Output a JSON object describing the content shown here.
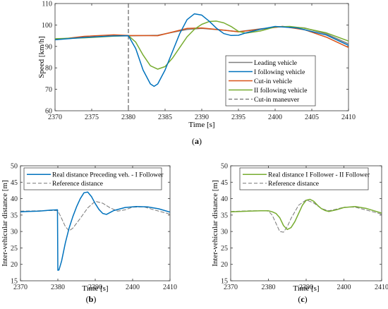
{
  "captions": [
    "(a)",
    "(b)",
    "(c)"
  ],
  "chart_data": [
    {
      "type": "line",
      "xlabel": "Time [s]",
      "ylabel": "Speed [km/h]",
      "xlim": [
        2370,
        2410
      ],
      "ylim": [
        60,
        110
      ],
      "xticks": [
        2370,
        2375,
        2380,
        2385,
        2390,
        2395,
        2400,
        2405,
        2410
      ],
      "yticks": [
        60,
        70,
        80,
        90,
        100,
        110
      ],
      "grid": false,
      "legend_position": "bottom-right",
      "vline": {
        "name": "Cut-in maneuver",
        "x": 2380,
        "color": "#555555",
        "dashed": true
      },
      "series": [
        {
          "name": "Leading vehicle",
          "color": "#7f7f7f",
          "dashed": false,
          "x": [
            2370,
            2374,
            2378,
            2380,
            2384,
            2388,
            2390,
            2393,
            2395,
            2398,
            2401,
            2404,
            2407,
            2410
          ],
          "y": [
            93.3,
            94.2,
            94.9,
            94.9,
            95.2,
            97.9,
            98.4,
            97.6,
            96.9,
            98.2,
            99.3,
            98.6,
            95.8,
            91.2
          ]
        },
        {
          "name": "Cut-in vehicle",
          "color": "#d95319",
          "dashed": false,
          "x": [
            2370,
            2374,
            2378,
            2380,
            2384,
            2388,
            2390,
            2393,
            2395,
            2398,
            2401,
            2404,
            2407,
            2410
          ],
          "y": [
            93.1,
            94.7,
            95.4,
            95.1,
            95.0,
            98.4,
            98.6,
            97.6,
            96.8,
            98.0,
            99.3,
            97.8,
            94.3,
            89.5
          ]
        },
        {
          "name": "II following vehicle",
          "color": "#77ac30",
          "dashed": false,
          "x": [
            2370,
            2374,
            2378,
            2380,
            2381,
            2382,
            2383,
            2384,
            2385,
            2386,
            2387,
            2388,
            2389,
            2390,
            2391,
            2392,
            2393,
            2394,
            2395,
            2396,
            2398,
            2400,
            2402,
            2404,
            2407,
            2410
          ],
          "y": [
            93.6,
            94.0,
            94.8,
            95.0,
            92.0,
            86.0,
            81.0,
            79.4,
            80.6,
            84.5,
            89.5,
            94.5,
            98.0,
            100.3,
            101.6,
            101.8,
            101.0,
            99.3,
            97.0,
            96.2,
            97.2,
            99.1,
            99.3,
            98.5,
            96.3,
            92.5
          ]
        },
        {
          "name": "I following vehicle",
          "color": "#0072bd",
          "dashed": false,
          "x": [
            2370,
            2374,
            2378,
            2380,
            2381,
            2382,
            2383,
            2383.5,
            2384,
            2385,
            2386,
            2387,
            2388,
            2389,
            2390,
            2391,
            2392,
            2393,
            2394,
            2395,
            2396,
            2398,
            2400,
            2403,
            2407,
            2410
          ],
          "y": [
            93.1,
            94.2,
            94.9,
            95.0,
            89.0,
            79.0,
            72.5,
            71.4,
            72.5,
            79.0,
            87.5,
            96.0,
            102.5,
            105.2,
            104.6,
            101.8,
            98.5,
            96.0,
            95.1,
            95.2,
            96.3,
            98.0,
            99.3,
            98.6,
            95.3,
            90.5
          ]
        }
      ],
      "legend_entries": [
        {
          "name": "Leading vehicle",
          "color": "#7f7f7f",
          "dashed": false
        },
        {
          "name": "I following vehicle",
          "color": "#0072bd",
          "dashed": false
        },
        {
          "name": "Cut-in vehicle",
          "color": "#d95319",
          "dashed": false
        },
        {
          "name": "II following vehicle",
          "color": "#77ac30",
          "dashed": false
        },
        {
          "name": "Cut-in maneuver",
          "color": "#555555",
          "dashed": true
        }
      ]
    },
    {
      "type": "line",
      "xlabel": "Time [s]",
      "ylabel": "Inter-vehicular distance [m]",
      "xlim": [
        2370,
        2410
      ],
      "ylim": [
        15,
        50
      ],
      "xticks": [
        2370,
        2380,
        2390,
        2400,
        2410
      ],
      "yticks": [
        15,
        20,
        25,
        30,
        35,
        40,
        45,
        50
      ],
      "grid": false,
      "legend_position": "top-left",
      "series": [
        {
          "name": "Reference distance",
          "color": "#777777",
          "dashed": true,
          "x": [
            2370,
            2375,
            2379,
            2380,
            2381,
            2382,
            2383,
            2384,
            2386,
            2388,
            2390,
            2392,
            2394,
            2396,
            2398,
            2400,
            2403,
            2406,
            2410
          ],
          "y": [
            36.2,
            36.3,
            36.4,
            36.3,
            34.0,
            31.5,
            30.2,
            31.0,
            34.0,
            37.2,
            39.2,
            38.6,
            37.2,
            36.2,
            36.6,
            37.4,
            37.5,
            36.5,
            35.3
          ]
        },
        {
          "name": "Real distance Preceding veh. - I Follower",
          "color": "#0072bd",
          "dashed": false,
          "x": [
            2370,
            2372,
            2375,
            2378,
            2379.9,
            2380,
            2380.3,
            2381,
            2382,
            2383,
            2384,
            2385,
            2386,
            2387,
            2388,
            2389,
            2390,
            2391,
            2392,
            2393,
            2395,
            2398,
            2401,
            2404,
            2407,
            2410
          ],
          "y": [
            36.0,
            36.1,
            36.2,
            36.5,
            36.6,
            18.2,
            18.3,
            21.0,
            26.5,
            31.0,
            34.5,
            37.5,
            40.0,
            41.8,
            42.0,
            40.6,
            38.5,
            36.7,
            35.5,
            35.2,
            36.4,
            37.3,
            37.6,
            37.5,
            36.9,
            35.9
          ]
        }
      ],
      "legend_entries": [
        {
          "name": "Real distance Preceding veh. - I Follower",
          "color": "#0072bd",
          "dashed": false
        },
        {
          "name": "Reference distance",
          "color": "#777777",
          "dashed": true
        }
      ]
    },
    {
      "type": "line",
      "xlabel": "Time [s]",
      "ylabel": "Inter-vehicular distance [m]",
      "xlim": [
        2370,
        2410
      ],
      "ylim": [
        15,
        50
      ],
      "xticks": [
        2370,
        2380,
        2390,
        2400,
        2410
      ],
      "yticks": [
        15,
        20,
        25,
        30,
        35,
        40,
        45,
        50
      ],
      "grid": false,
      "legend_position": "top-left",
      "series": [
        {
          "name": "Reference distance",
          "color": "#777777",
          "dashed": true,
          "x": [
            2370,
            2375,
            2379,
            2380,
            2381,
            2382,
            2383,
            2384,
            2385,
            2386,
            2388,
            2390,
            2392,
            2394,
            2396,
            2398,
            2400,
            2403,
            2406,
            2410
          ],
          "y": [
            36.1,
            36.3,
            36.3,
            36.2,
            35.0,
            32.5,
            30.0,
            29.8,
            31.5,
            34.0,
            38.0,
            39.6,
            38.7,
            37.0,
            36.3,
            36.8,
            37.4,
            37.4,
            36.5,
            35.3
          ]
        },
        {
          "name": "Real distance I Follower - II Follower",
          "color": "#77ac30",
          "dashed": false,
          "x": [
            2370,
            2375,
            2378,
            2380,
            2381,
            2382,
            2383,
            2384,
            2385,
            2386,
            2387,
            2388,
            2389,
            2390,
            2391,
            2392,
            2393,
            2394,
            2395,
            2396,
            2398,
            2400,
            2403,
            2406,
            2410
          ],
          "y": [
            36.0,
            36.2,
            36.3,
            36.3,
            36.0,
            35.5,
            34.2,
            31.8,
            30.6,
            31.2,
            33.0,
            35.5,
            38.0,
            39.5,
            39.8,
            39.2,
            38.0,
            37.0,
            36.4,
            36.1,
            36.6,
            37.3,
            37.6,
            37.0,
            35.6
          ]
        }
      ],
      "legend_entries": [
        {
          "name": "Real distance I Follower - II Follower",
          "color": "#77ac30",
          "dashed": false
        },
        {
          "name": "Reference distance",
          "color": "#777777",
          "dashed": true
        }
      ]
    }
  ]
}
